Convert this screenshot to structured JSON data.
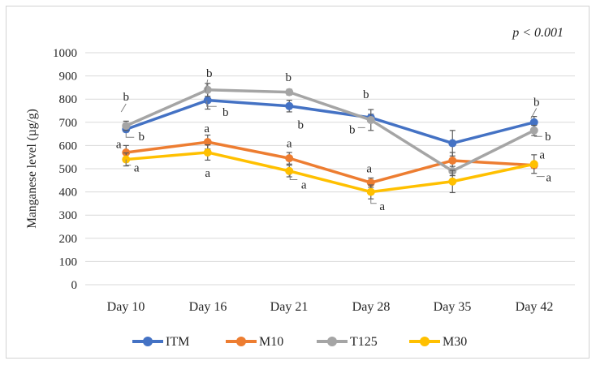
{
  "figure": {
    "background": "#ffffff",
    "border_color": "#d2d2d2",
    "p_value_label": "p < 0.001",
    "text_color": "#262626"
  },
  "chart_data": {
    "type": "line",
    "title": "",
    "xlabel": "",
    "ylabel": "Manganese level (µg/g)",
    "categories": [
      "Day 10",
      "Day 16",
      "Day 21",
      "Day 28",
      "Day 35",
      "Day 42"
    ],
    "ylim": [
      0,
      1000
    ],
    "ytick_step": 100,
    "grid": true,
    "gridline_color": "#d9d9d9",
    "error_bar_color": "#595959",
    "leader_line_color": "#808080",
    "legend_position": "bottom",
    "series": [
      {
        "name": "ITM",
        "color": "#4472C4",
        "values": [
          670,
          795,
          770,
          720,
          610,
          700
        ],
        "errors": [
          12,
          38,
          25,
          15,
          55,
          25
        ]
      },
      {
        "name": "M10",
        "color": "#ED7D31",
        "values": [
          570,
          615,
          545,
          440,
          535,
          515
        ],
        "errors": [
          30,
          30,
          25,
          20,
          35,
          12
        ]
      },
      {
        "name": "T125",
        "color": "#A5A5A5",
        "values": [
          685,
          840,
          830,
          710,
          490,
          665
        ],
        "errors": [
          20,
          28,
          12,
          45,
          20,
          22
        ]
      },
      {
        "name": "M30",
        "color": "#FFC000",
        "values": [
          540,
          570,
          490,
          400,
          445,
          520
        ],
        "errors": [
          28,
          33,
          25,
          30,
          48,
          40
        ]
      }
    ],
    "significance_labels": [
      {
        "text": "b",
        "cat": 0,
        "value": 811,
        "dx": 0,
        "leader": [
          [
            0,
            9
          ],
          [
            -6,
            19
          ]
        ]
      },
      {
        "text": "b",
        "cat": 0,
        "value": 639,
        "dx": 19,
        "leader": [
          [
            -19,
            -4
          ],
          [
            -19,
            1
          ],
          [
            -9,
            1
          ]
        ]
      },
      {
        "text": "a",
        "cat": 0,
        "value": 607,
        "dx": -9
      },
      {
        "text": "a",
        "cat": 0,
        "value": 505,
        "dx": 13,
        "leader": [
          [
            -13,
            -10
          ],
          [
            -13,
            -3
          ],
          [
            -7,
            -3
          ]
        ]
      },
      {
        "text": "b",
        "cat": 1,
        "value": 912,
        "dx": 2,
        "leader": [
          [
            -2,
            8
          ],
          [
            -5,
            23
          ]
        ]
      },
      {
        "text": "b",
        "cat": 1,
        "value": 744,
        "dx": 22,
        "leader": [
          [
            -23,
            -14
          ],
          [
            -23,
            -7
          ],
          [
            -11,
            -7
          ]
        ]
      },
      {
        "text": "a",
        "cat": 1,
        "value": 674,
        "dx": -1
      },
      {
        "text": "a",
        "cat": 1,
        "value": 482,
        "dx": 0
      },
      {
        "text": "b",
        "cat": 2,
        "value": 895,
        "dx": -1
      },
      {
        "text": "b",
        "cat": 2,
        "value": 691,
        "dx": 14
      },
      {
        "text": "a",
        "cat": 2,
        "value": 611,
        "dx": 0
      },
      {
        "text": "a",
        "cat": 2,
        "value": 432,
        "dx": 18,
        "leader": [
          [
            -17,
            -13
          ],
          [
            -17,
            -6
          ],
          [
            -8,
            -6
          ]
        ]
      },
      {
        "text": "b",
        "cat": 3,
        "value": 821,
        "dx": -6
      },
      {
        "text": "b",
        "cat": 3,
        "value": 670,
        "dx": -23,
        "leader": [
          [
            7,
            -2
          ],
          [
            16,
            -2
          ]
        ]
      },
      {
        "text": "a",
        "cat": 3,
        "value": 502,
        "dx": -2
      },
      {
        "text": "a",
        "cat": 3,
        "value": 340,
        "dx": 14,
        "leader": [
          [
            -14,
            -8
          ],
          [
            -14,
            -3
          ],
          [
            -7,
            -3
          ]
        ]
      },
      {
        "text": "b",
        "cat": 5,
        "value": 789,
        "dx": 3,
        "leader": [
          [
            0,
            8
          ],
          [
            -7,
            21
          ]
        ]
      },
      {
        "text": "b",
        "cat": 5,
        "value": 639,
        "dx": 17,
        "leader": [
          [
            -17,
            0
          ],
          [
            -7,
            0
          ]
        ]
      },
      {
        "text": "a",
        "cat": 5,
        "value": 561,
        "dx": 10
      },
      {
        "text": "a",
        "cat": 5,
        "value": 463,
        "dx": 18,
        "leader": [
          [
            -15,
            -1
          ],
          [
            -5,
            -1
          ]
        ]
      }
    ]
  }
}
